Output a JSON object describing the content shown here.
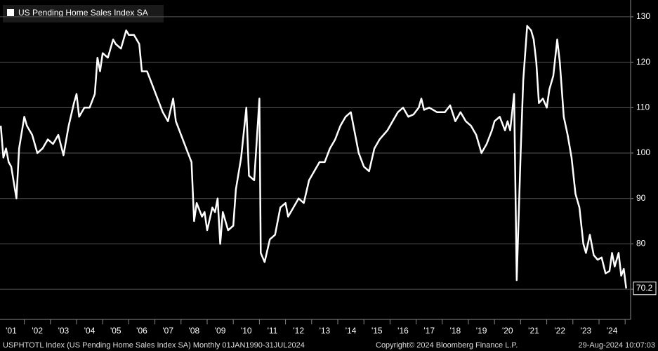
{
  "chart_data": {
    "type": "line",
    "legend_title": "US Pending Home Sales Index SA",
    "x": [
      2000.6,
      2000.7,
      2000.8,
      2000.9,
      2001.0,
      2001.2,
      2001.3,
      2001.5,
      2001.6,
      2001.8,
      2002.0,
      2002.2,
      2002.4,
      2002.6,
      2002.8,
      2003.0,
      2003.2,
      2003.4,
      2003.5,
      2003.6,
      2003.8,
      2004.0,
      2004.2,
      2004.3,
      2004.4,
      2004.5,
      2004.7,
      2004.9,
      2005.0,
      2005.2,
      2005.4,
      2005.5,
      2005.7,
      2005.9,
      2006.0,
      2006.2,
      2006.4,
      2006.6,
      2006.8,
      2007.0,
      2007.2,
      2007.3,
      2007.5,
      2007.7,
      2007.9,
      2008.0,
      2008.1,
      2008.3,
      2008.4,
      2008.5,
      2008.7,
      2008.8,
      2008.9,
      2009.0,
      2009.1,
      2009.3,
      2009.5,
      2009.6,
      2009.8,
      2010.0,
      2010.1,
      2010.3,
      2010.5,
      2010.55,
      2010.7,
      2010.9,
      2011.1,
      2011.3,
      2011.5,
      2011.6,
      2011.8,
      2012.0,
      2012.2,
      2012.4,
      2012.6,
      2012.8,
      2013.0,
      2013.2,
      2013.4,
      2013.6,
      2013.8,
      2014.0,
      2014.1,
      2014.3,
      2014.5,
      2014.7,
      2014.9,
      2015.1,
      2015.4,
      2015.6,
      2015.8,
      2016.0,
      2016.2,
      2016.4,
      2016.6,
      2016.7,
      2016.8,
      2017.0,
      2017.3,
      2017.6,
      2017.8,
      2018.0,
      2018.2,
      2018.4,
      2018.6,
      2018.8,
      2019.0,
      2019.2,
      2019.4,
      2019.5,
      2019.7,
      2019.9,
      2020.0,
      2020.1,
      2020.25,
      2020.35,
      2020.5,
      2020.6,
      2020.75,
      2020.9,
      2021.0,
      2021.1,
      2021.2,
      2021.35,
      2021.5,
      2021.6,
      2021.75,
      2021.9,
      2022.0,
      2022.15,
      2022.3,
      2022.45,
      2022.6,
      2022.75,
      2022.9,
      2023.0,
      2023.15,
      2023.3,
      2023.45,
      2023.6,
      2023.75,
      2023.9,
      2024.0,
      2024.1,
      2024.25,
      2024.35,
      2024.45,
      2024.54
    ],
    "series": [
      {
        "name": "US Pending Home Sales Index SA",
        "color": "#ffffff",
        "values": [
          106,
          99,
          101,
          98,
          97,
          90,
          101,
          108,
          106,
          104,
          100,
          101,
          103,
          102,
          104,
          99.5,
          106,
          111,
          113,
          108,
          110,
          110,
          113,
          121,
          118,
          122,
          121,
          125,
          124,
          123,
          127,
          126,
          126,
          124,
          118,
          118,
          115,
          112,
          109,
          107,
          112,
          107,
          104,
          101,
          98,
          85,
          89,
          86,
          87,
          83,
          88,
          87,
          90,
          80,
          87,
          83,
          84,
          92,
          99,
          110,
          95,
          94,
          112,
          78,
          76,
          81,
          82,
          88,
          89,
          86,
          88,
          90,
          89,
          94,
          96,
          98,
          98,
          101,
          103,
          106,
          108,
          109,
          106,
          100,
          97,
          96,
          101,
          103,
          105,
          107,
          109,
          110,
          108,
          108.5,
          110,
          112,
          109.5,
          110,
          109,
          109,
          110.5,
          107,
          109,
          107,
          106,
          104,
          100,
          102,
          105,
          107,
          108,
          105,
          107,
          105,
          113,
          72,
          100,
          116,
          128,
          127,
          125,
          120,
          111,
          112,
          110,
          114,
          117,
          125,
          120,
          108,
          104,
          99,
          91,
          88,
          80,
          78,
          82,
          77.5,
          76.5,
          77,
          73.5,
          74,
          78,
          75,
          78,
          73,
          74.5,
          70.2
        ]
      }
    ],
    "xlim": [
      2000.57,
      2024.71
    ],
    "xticks": [
      {
        "value": 2001,
        "label": "'01"
      },
      {
        "value": 2002,
        "label": "'02"
      },
      {
        "value": 2003,
        "label": "'03"
      },
      {
        "value": 2004,
        "label": "'04"
      },
      {
        "value": 2005,
        "label": "'05"
      },
      {
        "value": 2006,
        "label": "'06"
      },
      {
        "value": 2007,
        "label": "'07"
      },
      {
        "value": 2008,
        "label": "'08"
      },
      {
        "value": 2009,
        "label": "'09"
      },
      {
        "value": 2010,
        "label": "'10"
      },
      {
        "value": 2011,
        "label": "'11"
      },
      {
        "value": 2012,
        "label": "'12"
      },
      {
        "value": 2013,
        "label": "'13"
      },
      {
        "value": 2014,
        "label": "'14"
      },
      {
        "value": 2015,
        "label": "'15"
      },
      {
        "value": 2016,
        "label": "'16"
      },
      {
        "value": 2017,
        "label": "'17"
      },
      {
        "value": 2018,
        "label": "'18"
      },
      {
        "value": 2019,
        "label": "'19"
      },
      {
        "value": 2020,
        "label": "'20"
      },
      {
        "value": 2021,
        "label": "'21"
      },
      {
        "value": 2022,
        "label": "'22"
      },
      {
        "value": 2023,
        "label": "'23"
      },
      {
        "value": 2024,
        "label": "'24"
      }
    ],
    "ylim": [
      64.6,
      133.7
    ],
    "yticks": [
      70,
      80,
      90,
      100,
      110,
      120,
      130
    ],
    "grid": true
  },
  "footer": [
    "USPHTOTL Index (US Pending Home Sales Index SA)  Monthly 01JAN1990-31JUL2024",
    "Copyright© 2024 Bloomberg Finance L.P.",
    "29-Aug-2024 10:07:03"
  ]
}
